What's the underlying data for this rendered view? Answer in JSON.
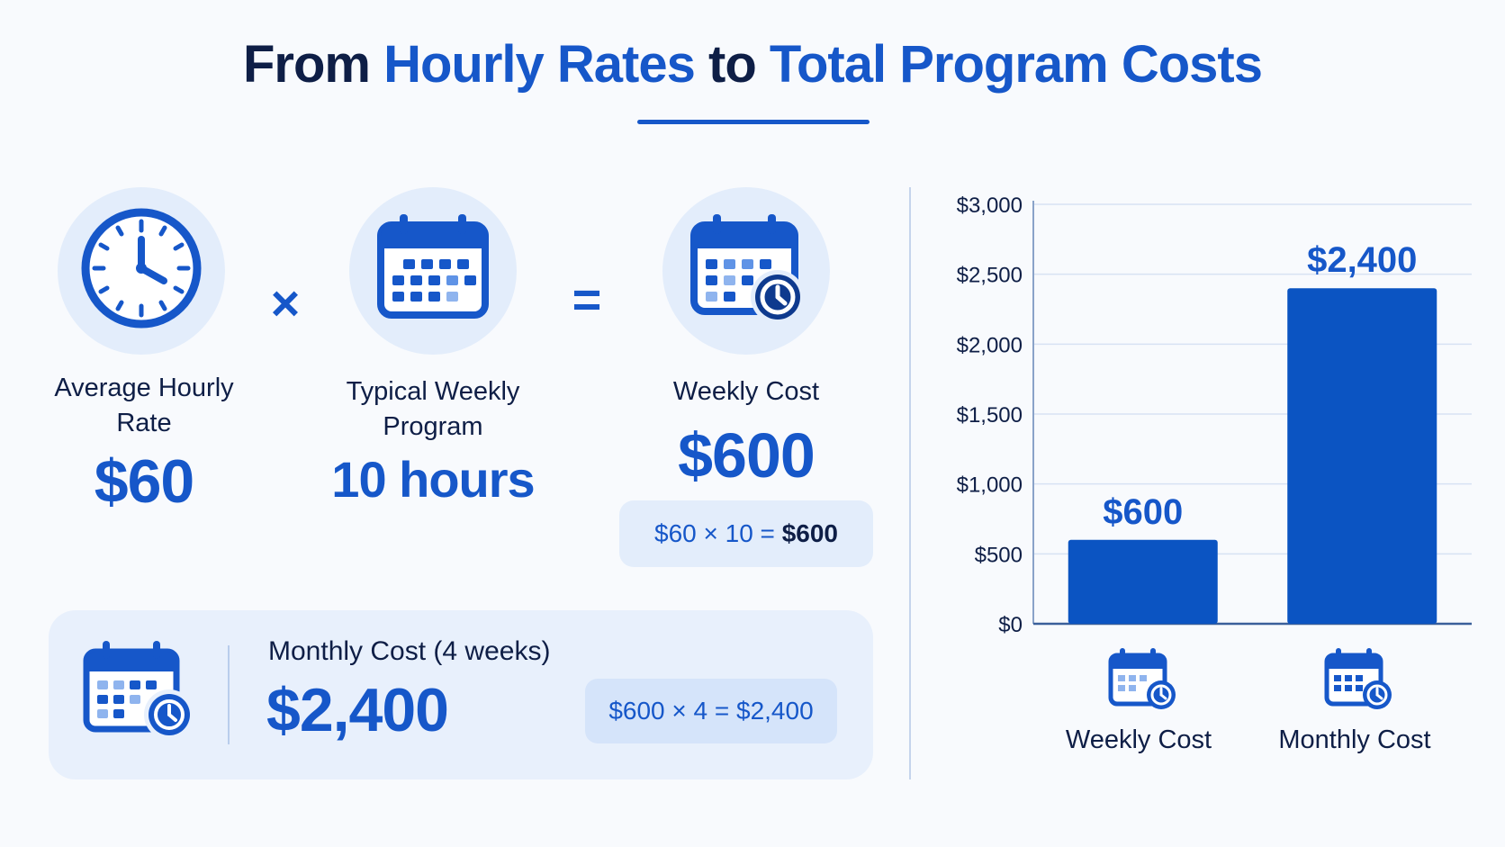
{
  "title": {
    "part1": "From ",
    "part2": "Hourly Rates",
    "part3": " to ",
    "part4": "Total Program Costs"
  },
  "colors": {
    "accent": "#1657c9",
    "dark": "#0e1e46",
    "bar": "#0b54c2",
    "soft": "#e3edfb"
  },
  "icons": {
    "rate": "clock-icon",
    "hours": "calendar-icon",
    "weekly": "calendar-clock-icon",
    "monthly": "calendar-clock-icon"
  },
  "operators": {
    "times": "×",
    "equals": "="
  },
  "steps": {
    "rate": {
      "label_line1": "Average Hourly",
      "label_line2": "Rate",
      "value": "$60"
    },
    "hours": {
      "label_line1": "Typical Weekly",
      "label_line2": "Program",
      "value": "10 hours"
    },
    "weekly": {
      "label": "Weekly Cost",
      "value": "$600",
      "formula_lhs": "$60 × 10 = ",
      "formula_rhs": "$600"
    }
  },
  "monthly": {
    "label": "Monthly Cost (4 weeks)",
    "value": "$2,400",
    "formula": "$600 × 4 = $2,400"
  },
  "chart_data": {
    "type": "bar",
    "categories": [
      "Weekly Cost",
      "Monthly Cost"
    ],
    "values": [
      600,
      2400
    ],
    "data_labels": [
      "$600",
      "$2,400"
    ],
    "y_ticks": [
      0,
      500,
      1000,
      1500,
      2000,
      2500,
      3000
    ],
    "y_tick_labels": [
      "$0",
      "$500",
      "$1,000",
      "$1,500",
      "$2,000",
      "$2,500",
      "$3,000"
    ],
    "ylim": [
      0,
      3000
    ],
    "grid": true,
    "title": "",
    "xlabel": "",
    "ylabel": ""
  }
}
